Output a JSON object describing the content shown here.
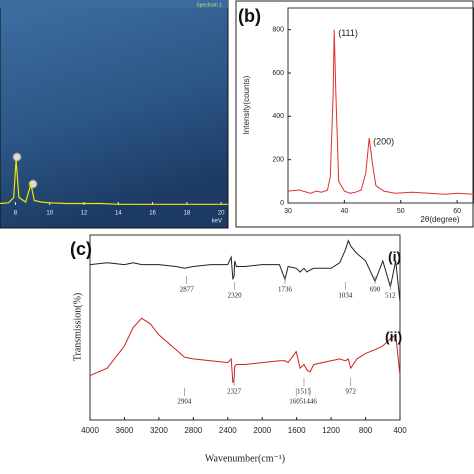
{
  "chart_data": [
    {
      "type": "line",
      "title": "Spectrum 1",
      "xlabel": "keV",
      "x": [
        7.1,
        7.6,
        7.9,
        8.04,
        8.2,
        8.6,
        8.9,
        9.1,
        9.5,
        10,
        11,
        12,
        13,
        14,
        15,
        16,
        17,
        18,
        19,
        20,
        20.4
      ],
      "series": [
        {
          "color": "#f2e600",
          "values": [
            2,
            3,
            10,
            60,
            10,
            4,
            28,
            6,
            4,
            3,
            2,
            2,
            2,
            1,
            1,
            1,
            1,
            1,
            1,
            1,
            1
          ]
        }
      ],
      "xlim": [
        7.1,
        20.4
      ],
      "ylim": [
        0,
        100
      ],
      "xticks": [
        8,
        10,
        12,
        14,
        16,
        18,
        20
      ]
    },
    {
      "type": "line",
      "title": "(b)",
      "xlabel": "2θ(degree)",
      "ylabel": "Intensity(counts)",
      "x": [
        30,
        32,
        34,
        35,
        36,
        37,
        37.5,
        38,
        38.2,
        38.5,
        39,
        40,
        41,
        42,
        43,
        43.8,
        44.4,
        45,
        45.6,
        47,
        49,
        52,
        55,
        58,
        60,
        63
      ],
      "series": [
        {
          "color": "#e0302e",
          "values": [
            55,
            60,
            45,
            55,
            50,
            60,
            120,
            500,
            800,
            500,
            100,
            55,
            45,
            50,
            60,
            140,
            300,
            180,
            80,
            55,
            45,
            50,
            45,
            40,
            45,
            40
          ]
        }
      ],
      "annotations": [
        {
          "text": "(111)",
          "x": 38.2,
          "y": 800
        },
        {
          "text": "(200)",
          "x": 44.4,
          "y": 300
        }
      ],
      "xlim": [
        30,
        63
      ],
      "ylim": [
        0,
        900
      ],
      "xticks": [
        30,
        40,
        50,
        60
      ],
      "yticks": [
        0,
        200,
        400,
        600,
        800
      ]
    },
    {
      "type": "line",
      "title": "(c)",
      "xlabel": "Wavenumber(cm⁻¹)",
      "ylabel": "Transmission(%)",
      "x": [
        4000,
        3800,
        3600,
        3500,
        3400,
        3300,
        3200,
        3000,
        2904,
        2800,
        2600,
        2400,
        2360,
        2340,
        2327,
        2320,
        2300,
        2200,
        2000,
        1800,
        1736,
        1700,
        1605,
        1560,
        1515,
        1480,
        1446,
        1400,
        1200,
        1100,
        1034,
        1000,
        972,
        900,
        800,
        690,
        600,
        512,
        450,
        400
      ],
      "series": [
        {
          "name": "(i)",
          "color": "#222222",
          "values": [
            84,
            85,
            84,
            85,
            84,
            84,
            84,
            83,
            82,
            83,
            84,
            84,
            88,
            76,
            78,
            86,
            83,
            83,
            84,
            84,
            76,
            83,
            82,
            80,
            82,
            80,
            81,
            82,
            82,
            85,
            92,
            97,
            94,
            90,
            86,
            75,
            86,
            72,
            86,
            64
          ],
          "peak_labels": [
            2877,
            2320,
            1736,
            1034,
            690,
            512
          ]
        },
        {
          "name": "(ii)",
          "color": "#d42020",
          "values": [
            24,
            28,
            40,
            50,
            55,
            52,
            46,
            38,
            34,
            33,
            32,
            31,
            33,
            20,
            22,
            29,
            30,
            30,
            31,
            32,
            32,
            31,
            37,
            28,
            30,
            27,
            26,
            30,
            32,
            33,
            32,
            33,
            28,
            33,
            36,
            38,
            40,
            44,
            46,
            24
          ],
          "peak_labels": [
            2904,
            2327,
            1605,
            1515,
            1446,
            972
          ]
        }
      ],
      "xlim": [
        4000,
        400
      ],
      "ylim": [
        0,
        100
      ],
      "xticks": [
        4000,
        3600,
        3200,
        2800,
        2400,
        2000,
        1600,
        1200,
        800,
        400
      ]
    }
  ]
}
